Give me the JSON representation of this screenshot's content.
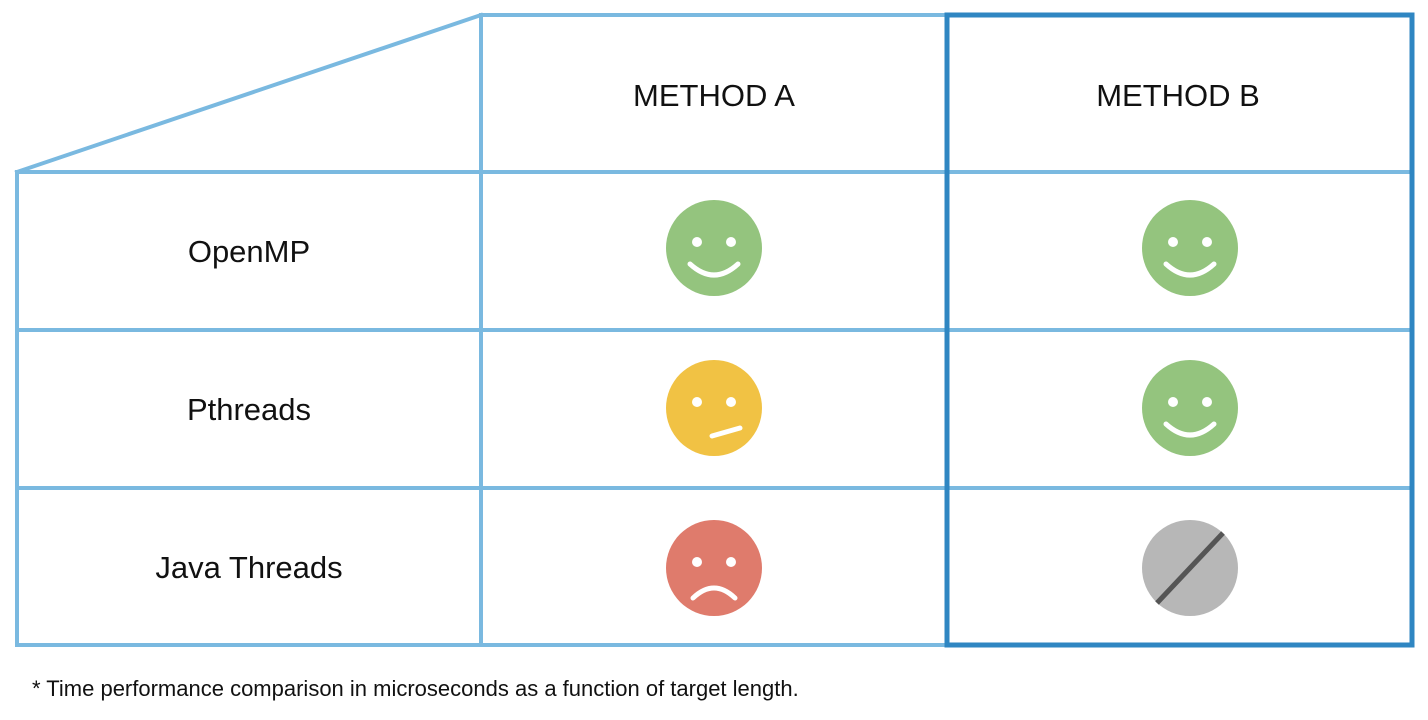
{
  "table": {
    "columns": [
      {
        "label": "METHOD A"
      },
      {
        "label": "METHOD B",
        "highlighted": true
      }
    ],
    "rows": [
      {
        "label": "OpenMP",
        "cells": [
          "good",
          "good"
        ]
      },
      {
        "label": "Pthreads",
        "cells": [
          "neutral",
          "good"
        ]
      },
      {
        "label": "Java Threads",
        "cells": [
          "bad",
          "not-applicable"
        ]
      }
    ],
    "legend_icons": {
      "good": "smiling-face-icon",
      "neutral": "neutral-face-icon",
      "bad": "frowning-face-icon",
      "not-applicable": "not-applicable-icon"
    }
  },
  "colors": {
    "grid": "#7ab9e0",
    "highlight_border": "#2f86c2",
    "good": "#94c47e",
    "neutral": "#f1c244",
    "bad": "#df7b6c",
    "not_applicable": "#b7b7b7",
    "not_applicable_slash": "#555555",
    "face_features": "#ffffff"
  },
  "footnote": "* Time performance comparison in microseconds as a function of target length."
}
